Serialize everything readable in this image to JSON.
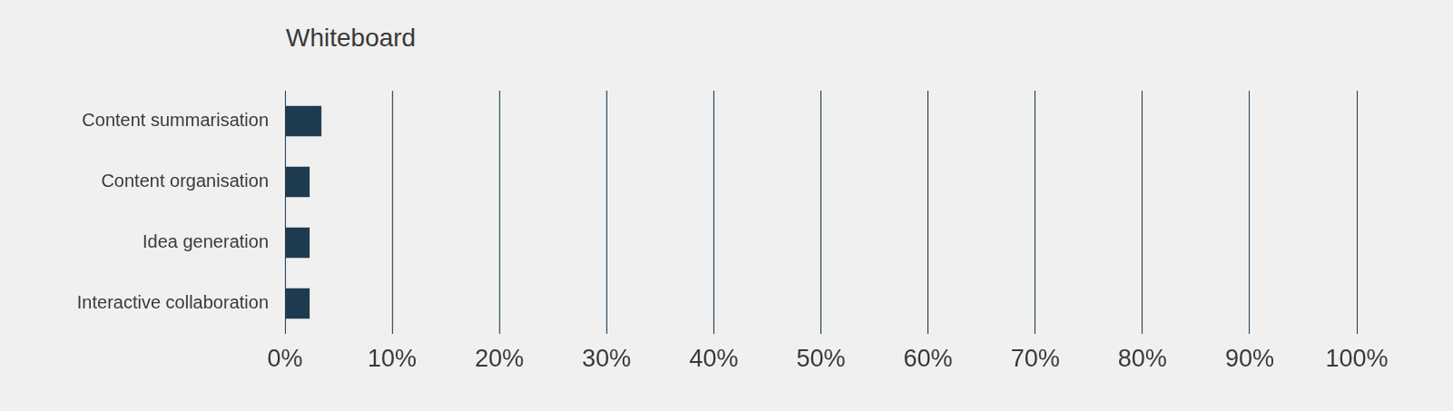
{
  "chart_data": {
    "type": "bar",
    "title": "Whiteboard",
    "orientation": "horizontal",
    "categories": [
      "Content summarisation",
      "Content organisation",
      "Idea generation",
      "Interactive collaboration"
    ],
    "values": [
      3.4,
      2.3,
      2.3,
      2.3
    ],
    "color": "#1e3a4f",
    "xlim": [
      0,
      100
    ],
    "xticks": [
      {
        "value": 0,
        "label": "0%"
      },
      {
        "value": 10,
        "label": "10%"
      },
      {
        "value": 20,
        "label": "20%"
      },
      {
        "value": 30,
        "label": "30%"
      },
      {
        "value": 40,
        "label": "40%"
      },
      {
        "value": 50,
        "label": "50%"
      },
      {
        "value": 60,
        "label": "60%"
      },
      {
        "value": 70,
        "label": "70%"
      },
      {
        "value": 80,
        "label": "80%"
      },
      {
        "value": 90,
        "label": "90%"
      },
      {
        "value": 100,
        "label": "100%"
      }
    ],
    "grid": true
  }
}
